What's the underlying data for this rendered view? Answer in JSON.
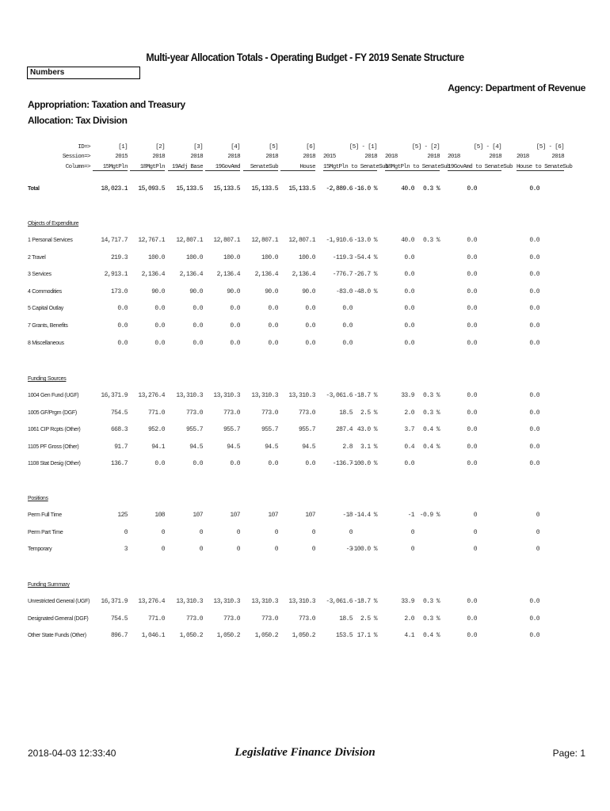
{
  "title": "Multi-year Allocation Totals - Operating Budget - FY 2019 Senate Structure",
  "box_label": "Numbers",
  "agency": "Agency: Department of Revenue",
  "appropriation": "Appropriation: Taxation and Treasury",
  "allocation": "Allocation: Tax Division",
  "column_headers": {
    "row_labels": [
      "ID=>",
      "Session=>",
      "Column=>"
    ],
    "columns": [
      {
        "id": "[1]",
        "session": "2015",
        "name": "15MgtPln"
      },
      {
        "id": "[2]",
        "session": "2018",
        "name": "18MgtPln"
      },
      {
        "id": "[3]",
        "session": "2018",
        "name": "19Adj Base"
      },
      {
        "id": "[4]",
        "session": "2018",
        "name": "19GovAmd"
      },
      {
        "id": "[5]",
        "session": "2018",
        "name": "SenateSub"
      },
      {
        "id": "[6]",
        "session": "2018",
        "name": "House"
      }
    ],
    "comparisons": [
      {
        "id": "[5] - [1]",
        "sessions": [
          "2015",
          "2018"
        ],
        "name": "15MgtPln to SenateSub"
      },
      {
        "id": "[5] - [2]",
        "sessions": [
          "2018",
          "2018"
        ],
        "name": "18MgtPln to SenateSub"
      },
      {
        "id": "[5] - [4]",
        "sessions": [
          "2018",
          "2018"
        ],
        "name": "19GovAmd to SenateSub"
      },
      {
        "id": "[5] - [6]",
        "sessions": [
          "2018",
          "2018"
        ],
        "name": "House to SenateSub"
      }
    ]
  },
  "total": {
    "label": "Total",
    "cells": [
      "18,023.1",
      "15,093.5",
      "15,133.5",
      "15,133.5",
      "15,133.5",
      "15,133.5",
      "-2,889.6",
      "-16.0 %",
      "40.0",
      "0.3 %",
      "0.0",
      null,
      "0.0",
      null
    ]
  },
  "sections": [
    {
      "heading": "Objects of Expenditure",
      "rows": [
        {
          "label": "1 Personal Services",
          "cells": [
            "14,717.7",
            "12,767.1",
            "12,807.1",
            "12,807.1",
            "12,807.1",
            "12,807.1",
            "-1,910.6",
            "-13.0 %",
            "40.0",
            "0.3 %",
            "0.0",
            null,
            "0.0",
            null
          ]
        },
        {
          "label": "2 Travel",
          "cells": [
            "219.3",
            "100.0",
            "100.0",
            "100.0",
            "100.0",
            "100.0",
            "-119.3",
            "-54.4 %",
            "0.0",
            null,
            "0.0",
            null,
            "0.0",
            null
          ]
        },
        {
          "label": "3 Services",
          "cells": [
            "2,913.1",
            "2,136.4",
            "2,136.4",
            "2,136.4",
            "2,136.4",
            "2,136.4",
            "-776.7",
            "-26.7 %",
            "0.0",
            null,
            "0.0",
            null,
            "0.0",
            null
          ]
        },
        {
          "label": "4 Commodities",
          "cells": [
            "173.0",
            "90.0",
            "90.0",
            "90.0",
            "90.0",
            "90.0",
            "-83.0",
            "-48.0 %",
            "0.0",
            null,
            "0.0",
            null,
            "0.0",
            null
          ]
        },
        {
          "label": "5 Capital Outlay",
          "cells": [
            "0.0",
            "0.0",
            "0.0",
            "0.0",
            "0.0",
            "0.0",
            "0.0",
            null,
            "0.0",
            null,
            "0.0",
            null,
            "0.0",
            null
          ]
        },
        {
          "label": "7 Grants, Benefits",
          "cells": [
            "0.0",
            "0.0",
            "0.0",
            "0.0",
            "0.0",
            "0.0",
            "0.0",
            null,
            "0.0",
            null,
            "0.0",
            null,
            "0.0",
            null
          ]
        },
        {
          "label": "8 Miscellaneous",
          "cells": [
            "0.0",
            "0.0",
            "0.0",
            "0.0",
            "0.0",
            "0.0",
            "0.0",
            null,
            "0.0",
            null,
            "0.0",
            null,
            "0.0",
            null
          ]
        }
      ]
    },
    {
      "heading": "Funding Sources",
      "rows": [
        {
          "label": "1004 Gen Fund (UGF)",
          "cells": [
            "16,371.9",
            "13,276.4",
            "13,310.3",
            "13,310.3",
            "13,310.3",
            "13,310.3",
            "-3,061.6",
            "-18.7 %",
            "33.9",
            "0.3 %",
            "0.0",
            null,
            "0.0",
            null
          ]
        },
        {
          "label": "1005 GF/Prgm (DGF)",
          "cells": [
            "754.5",
            "771.0",
            "773.0",
            "773.0",
            "773.0",
            "773.0",
            "18.5",
            "2.5 %",
            "2.0",
            "0.3 %",
            "0.0",
            null,
            "0.0",
            null
          ]
        },
        {
          "label": "1061 CIP Rcpts (Other)",
          "cells": [
            "668.3",
            "952.0",
            "955.7",
            "955.7",
            "955.7",
            "955.7",
            "287.4",
            "43.0 %",
            "3.7",
            "0.4 %",
            "0.0",
            null,
            "0.0",
            null
          ]
        },
        {
          "label": "1105 PF Gross (Other)",
          "cells": [
            "91.7",
            "94.1",
            "94.5",
            "94.5",
            "94.5",
            "94.5",
            "2.8",
            "3.1 %",
            "0.4",
            "0.4 %",
            "0.0",
            null,
            "0.0",
            null
          ]
        },
        {
          "label": "1108 Stat Desig (Other)",
          "cells": [
            "136.7",
            "0.0",
            "0.0",
            "0.0",
            "0.0",
            "0.0",
            "-136.7",
            "-100.0 %",
            "0.0",
            null,
            "0.0",
            null,
            "0.0",
            null
          ]
        }
      ]
    },
    {
      "heading": "Positions",
      "rows": [
        {
          "label": "Perm Full Time",
          "cells": [
            "125",
            "108",
            "107",
            "107",
            "107",
            "107",
            "-18",
            "-14.4 %",
            "-1",
            "-0.9 %",
            "0",
            null,
            "0",
            null
          ]
        },
        {
          "label": "Perm Part Time",
          "cells": [
            "0",
            "0",
            "0",
            "0",
            "0",
            "0",
            "0",
            null,
            "0",
            null,
            "0",
            null,
            "0",
            null
          ]
        },
        {
          "label": "Temporary",
          "cells": [
            "3",
            "0",
            "0",
            "0",
            "0",
            "0",
            "-3",
            "-100.0 %",
            "0",
            null,
            "0",
            null,
            "0",
            null
          ]
        }
      ]
    },
    {
      "heading": "Funding Summary",
      "rows": [
        {
          "label": "Unrestricted General (UGF)",
          "cells": [
            "16,371.9",
            "13,276.4",
            "13,310.3",
            "13,310.3",
            "13,310.3",
            "13,310.3",
            "-3,061.6",
            "-18.7 %",
            "33.9",
            "0.3 %",
            "0.0",
            null,
            "0.0",
            null
          ]
        },
        {
          "label": "Designated General (DGF)",
          "cells": [
            "754.5",
            "771.0",
            "773.0",
            "773.0",
            "773.0",
            "773.0",
            "18.5",
            "2.5 %",
            "2.0",
            "0.3 %",
            "0.0",
            null,
            "0.0",
            null
          ]
        },
        {
          "label": "Other State Funds (Other)",
          "cells": [
            "896.7",
            "1,046.1",
            "1,050.2",
            "1,050.2",
            "1,050.2",
            "1,050.2",
            "153.5",
            "17.1 %",
            "4.1",
            "0.4 %",
            "0.0",
            null,
            "0.0",
            null
          ]
        }
      ]
    }
  ],
  "footer": {
    "timestamp": "2018-04-03 12:33:40",
    "division": "Legislative Finance Division",
    "page": "Page: 1"
  }
}
